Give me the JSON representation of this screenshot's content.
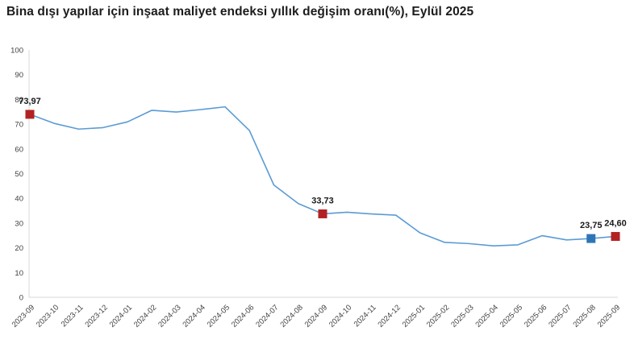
{
  "chart_data": {
    "type": "line",
    "title": "Bina dışı yapılar için inşaat maliyet endeksi yıllık değişim oranı(%), Eylül 2025",
    "x": [
      "2023-09",
      "2023-10",
      "2023-11",
      "2023-12",
      "2024-01",
      "2024-02",
      "2024-03",
      "2024-04",
      "2024-05",
      "2024-06",
      "2024-07",
      "2024-08",
      "2024-09",
      "2024-10",
      "2024-11",
      "2024-12",
      "2025-01",
      "2025-02",
      "2025-03",
      "2025-04",
      "2025-05",
      "2025-06",
      "2025-07",
      "2025-08",
      "2025-09"
    ],
    "series": [
      {
        "values": [
          73.97,
          70.3,
          68.0,
          68.6,
          70.9,
          75.6,
          74.9,
          75.9,
          77.0,
          67.4,
          45.4,
          37.9,
          33.73,
          34.4,
          33.7,
          33.2,
          26.0,
          22.2,
          21.7,
          20.8,
          21.2,
          24.9,
          23.2,
          23.75,
          24.6
        ]
      }
    ],
    "ylim": [
      0,
      100
    ],
    "ytick_step": 10,
    "ytick_labels": [
      "0",
      "10",
      "20",
      "30",
      "40",
      "50",
      "60",
      "70",
      "80",
      "90",
      "100"
    ],
    "grid": false,
    "legend": "none",
    "line_color": "#5b9bd5",
    "axis_color": "#d9d9d9",
    "tick_label_color": "#404040",
    "highlighted_points": [
      {
        "x": "2023-09",
        "index": 0,
        "value": 73.97,
        "label": "73,97",
        "marker_color": "#b22222"
      },
      {
        "x": "2024-09",
        "index": 12,
        "value": 33.73,
        "label": "33,73",
        "marker_color": "#b22222"
      },
      {
        "x": "2025-08",
        "index": 23,
        "value": 23.75,
        "label": "23,75",
        "marker_color": "#2e75b6"
      },
      {
        "x": "2025-09",
        "index": 24,
        "value": 24.6,
        "label": "24,60",
        "marker_color": "#b22222"
      }
    ]
  }
}
